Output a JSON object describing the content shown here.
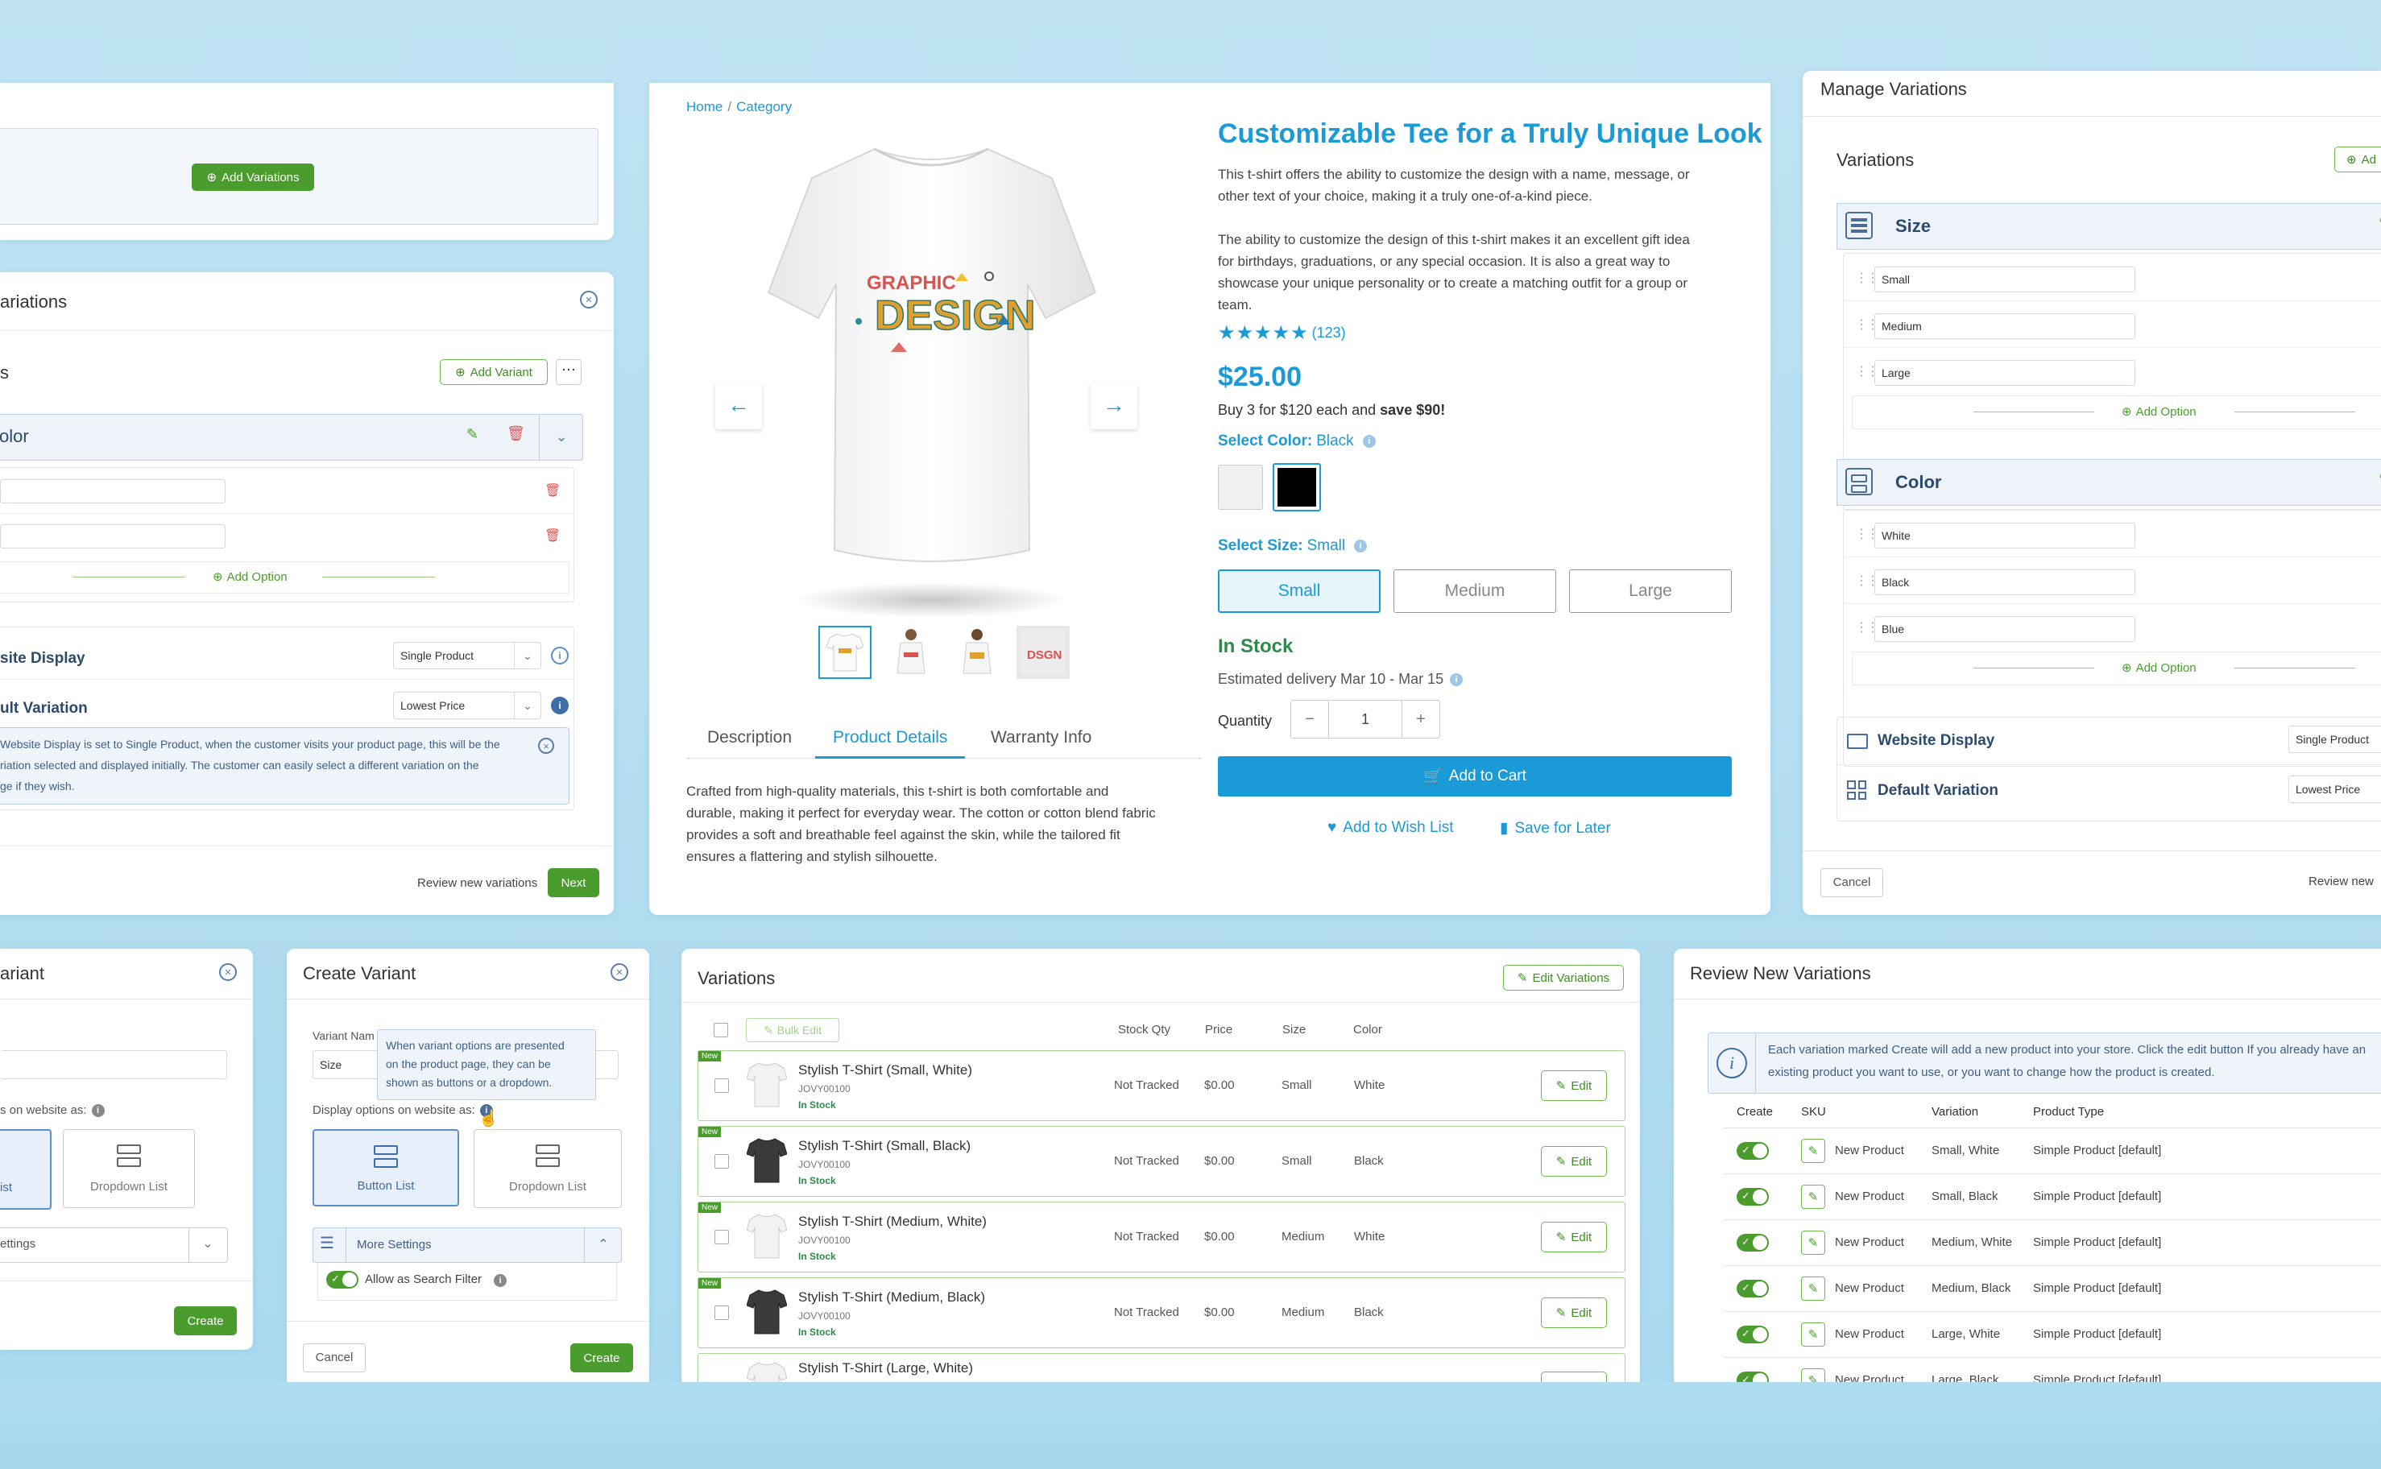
{
  "colors": {
    "accent_blue": "#1a9ad6",
    "green": "#4a9d2d",
    "stock_green": "#2f8a4a",
    "bg": "#b7e0f2"
  },
  "p1": {
    "add_variations": "Add Variations"
  },
  "p2": {
    "title": "ariations",
    "section": "s",
    "add_variant": "Add Variant",
    "group": "olor",
    "rows": [
      "",
      "",
      ""
    ],
    "add_option": "Add Option",
    "website_display_label": "site Display",
    "website_display_value": "Single Product",
    "default_variation_label": "ult Variation",
    "default_variation_value": "Lowest Price",
    "info_lines": [
      "Website Display is set to Single Product, when the customer visits your product page, this will be the",
      "riation selected and displayed initially. The customer can easily select a different variation on the",
      "ge if they wish."
    ],
    "review": "Review new variations",
    "next": "Next"
  },
  "product": {
    "breadcrumb_home": "Home",
    "breadcrumb_sep": "/",
    "breadcrumb_cat": "Category",
    "title": "Customizable Tee for a Truly Unique Look",
    "desc1_lines": [
      "This t-shirt offers the ability to customize the design with a name, message, or",
      "other text of your choice, making it a truly one-of-a-kind piece."
    ],
    "desc2_lines": [
      "The ability to customize the design of this t-shirt makes it an excellent gift idea",
      "for birthdays, graduations, or any special occasion. It is also a great way to",
      "showcase your unique personality or to create a matching outfit for a group or",
      "team."
    ],
    "stars": "★★★★★",
    "rating_count": "(123)",
    "price": "$25.00",
    "bulk_prefix": "Buy 3 for $120 each and",
    "bulk_save": "save $90!",
    "select_color_label": "Select Color:",
    "select_color_value": "Black",
    "swatches": [
      {
        "color": "#f0f0f0"
      },
      {
        "color": "#000000"
      }
    ],
    "select_size_label": "Select Size:",
    "select_size_value": "Small",
    "sizes": [
      "Small",
      "Medium",
      "Large"
    ],
    "stock": "In Stock",
    "delivery": "Estimated delivery Mar 10 - Mar 15",
    "quantity_label": "Quantity",
    "quantity_value": "1",
    "minus": "−",
    "plus": "+",
    "add_to_cart": "Add to Cart",
    "wishlist": "Add to Wish List",
    "save_later": "Save for Later",
    "tabs": [
      "Description",
      "Product Details",
      "Warranty Info"
    ],
    "details_lines": [
      "Crafted from high-quality materials, this t-shirt is both comfortable and",
      "durable, making it perfect for everyday wear. The cotton or cotton blend fabric",
      "provides a soft and breathable feel against the skin, while the tailored fit",
      "ensures a flattering and stylish silhouette."
    ],
    "shirt_text_top": "GRAPHIC",
    "shirt_text_main": "DESIGN"
  },
  "manage": {
    "title": "Manage Variations",
    "variations": "Variations",
    "add_btn": "Ad",
    "size_title": "Size",
    "size_options": [
      "Small",
      "Medium",
      "Large"
    ],
    "color_title": "Color",
    "color_options": [
      "White",
      "Black",
      "Blue"
    ],
    "add_option": "Add Option",
    "website_display": "Website Display",
    "website_display_value": "Single Product",
    "default_variation": "Default Variation",
    "default_variation_value": "Lowest Price",
    "cancel": "Cancel",
    "review": "Review new"
  },
  "cv1": {
    "title": "ariant",
    "label": "s on website as:",
    "button_list": "ist",
    "dropdown_list": "Dropdown List",
    "settings": "ettings",
    "create": "Create"
  },
  "cv2": {
    "title": "Create Variant",
    "name_label": "Variant Nam",
    "name_value": "Size",
    "tooltip_lines": [
      "When variant options are presented",
      "on the product page, they can be",
      "shown as buttons or a dropdown."
    ],
    "display_label": "Display options on website as:",
    "button_list": "Button List",
    "dropdown_list": "Dropdown List",
    "more_settings": "More Settings",
    "search_filter": "Allow as Search Filter",
    "cancel": "Cancel",
    "create": "Create"
  },
  "vtable": {
    "title": "Variations",
    "edit_variations": "Edit Variations",
    "bulk_edit": "Bulk Edit",
    "headers": {
      "stock": "Stock Qty",
      "price": "Price",
      "size": "Size",
      "color": "Color"
    },
    "new_badge": "New",
    "edit": "Edit",
    "rows": [
      {
        "name": "Stylish T-Shirt (Small, White)",
        "sku": "JOVY00100",
        "status": "In Stock",
        "stock": "Not Tracked",
        "price": "$0.00",
        "size": "Small",
        "color": "White",
        "shirt": "#f2f2f2"
      },
      {
        "name": "Stylish T-Shirt (Small, Black)",
        "sku": "JOVY00100",
        "status": "In Stock",
        "stock": "Not Tracked",
        "price": "$0.00",
        "size": "Small",
        "color": "Black",
        "shirt": "#3a3a3a"
      },
      {
        "name": "Stylish T-Shirt (Medium, White)",
        "sku": "JOVY00100",
        "status": "In Stock",
        "stock": "Not Tracked",
        "price": "$0.00",
        "size": "Medium",
        "color": "White",
        "shirt": "#f2f2f2"
      },
      {
        "name": "Stylish T-Shirt (Medium, Black)",
        "sku": "JOVY00100",
        "status": "In Stock",
        "stock": "Not Tracked",
        "price": "$0.00",
        "size": "Medium",
        "color": "Black",
        "shirt": "#3a3a3a"
      },
      {
        "name": "Stylish T-Shirt (Large, White)",
        "sku": "",
        "status": "",
        "stock": "",
        "price": "",
        "size": "",
        "color": "",
        "shirt": "#f2f2f2"
      }
    ]
  },
  "review": {
    "title": "Review New Variations",
    "info_lines": [
      "Each variation marked Create will add a new product into your store. Click the edit button If you already have an",
      "existing product you want to use, or you want to change how the product is created."
    ],
    "headers": {
      "create": "Create",
      "sku": "SKU",
      "variation": "Variation",
      "type": "Product Type"
    },
    "rows": [
      {
        "sku": "New Product",
        "variation": "Small, White",
        "type": "Simple Product [default]"
      },
      {
        "sku": "New Product",
        "variation": "Small, Black",
        "type": "Simple Product [default]"
      },
      {
        "sku": "New Product",
        "variation": "Medium, White",
        "type": "Simple Product [default]"
      },
      {
        "sku": "New Product",
        "variation": "Medium, Black",
        "type": "Simple Product [default]"
      },
      {
        "sku": "New Product",
        "variation": "Large, White",
        "type": "Simple Product [default]"
      },
      {
        "sku": "New Product",
        "variation": "Large, Black",
        "type": "Simple Product [default]"
      }
    ]
  }
}
